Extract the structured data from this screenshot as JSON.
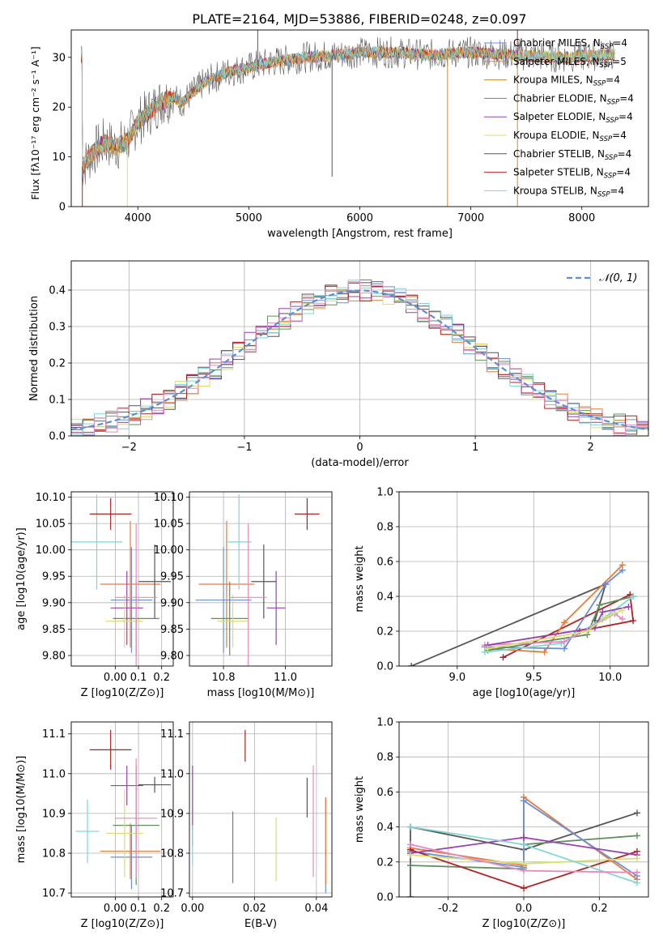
{
  "title": "PLATE=2164, MJD=53886, FIBERID=0248, z=0.097",
  "colors": {
    "chabrier_miles": "#6a8fd8",
    "salpeter_miles": "#e87b3a",
    "kroupa_miles": "#d08a2e",
    "chabrier_elodie": "#5f8f5f",
    "salpeter_elodie": "#9b3fb5",
    "kroupa_elodie": "#d8e06a",
    "chabrier_stelib": "#555555",
    "salpeter_stelib": "#b22020",
    "kroupa_stelib": "#7fd6d6",
    "pink": "#e58ac0",
    "normal_curve": "#5a8fd6"
  },
  "legend_top": [
    {
      "label": "Chabrier MILES, N",
      "sub": "SSP",
      "tail": "=4",
      "color": "#6a8fd8"
    },
    {
      "label": "Salpeter MILES, N",
      "sub": "SSP",
      "tail": "=5",
      "color": "#e87b3a"
    },
    {
      "label": "Kroupa MILES, N",
      "sub": "SSP",
      "tail": "=4",
      "color": "#d08a2e"
    },
    {
      "label": "Chabrier ELODIE, N",
      "sub": "SSP",
      "tail": "=4",
      "color": "#5f8f5f"
    },
    {
      "label": "Salpeter ELODIE, N",
      "sub": "SSP",
      "tail": "=4",
      "color": "#9b3fb5"
    },
    {
      "label": "Kroupa ELODIE, N",
      "sub": "SSP",
      "tail": "=4",
      "color": "#d8e06a"
    },
    {
      "label": "Chabrier STELIB, N",
      "sub": "SSP",
      "tail": "=4",
      "color": "#555555"
    },
    {
      "label": "Salpeter STELIB, N",
      "sub": "SSP",
      "tail": "=4",
      "color": "#b22020"
    },
    {
      "label": "Kroupa STELIB, N",
      "sub": "SSP",
      "tail": "=4",
      "color": "#7fd6d6"
    }
  ],
  "chart_data": [
    {
      "type": "line",
      "xlabel": "wavelength [Angstrom, rest frame]",
      "ylabel": "Flux [fλ10⁻¹⁷ erg cm⁻² s⁻¹ A⁻¹]",
      "xlim": [
        3400,
        8600
      ],
      "ylim": [
        0,
        35.5
      ],
      "xticks": [
        4000,
        5000,
        6000,
        7000,
        8000
      ],
      "yticks": [
        0,
        10,
        20,
        30
      ],
      "spectrum_envelope": {
        "x": [
          3500,
          3600,
          3700,
          3800,
          3900,
          4000,
          4100,
          4200,
          4300,
          4400,
          4500,
          4600,
          4800,
          5000,
          5200,
          5500,
          5800,
          6000,
          6300,
          6600,
          7000,
          7400,
          7800,
          8200
        ],
        "y": [
          8,
          11,
          13,
          12,
          13,
          17,
          19,
          21,
          22,
          21,
          23,
          25,
          27,
          28,
          29,
          30,
          30.5,
          31,
          31,
          30.5,
          31,
          30.5,
          30,
          30.5
        ]
      }
    },
    {
      "type": "histogram",
      "xlabel": "(data-model)/error",
      "ylabel": "Normed distribution",
      "xlim": [
        -2.5,
        2.5
      ],
      "ylim": [
        0,
        0.48
      ],
      "xticks": [
        -2,
        -1,
        0,
        1,
        2
      ],
      "yticks": [
        0.0,
        0.1,
        0.2,
        0.3,
        0.4
      ],
      "legend": "𝒩(0, 1)",
      "bin_width": 0.1
    },
    {
      "type": "scatter",
      "xlabel": "Z [log10(Z/Z⊙)]",
      "ylabel": "age  [log10(age/yr)]",
      "xlim": [
        -0.19,
        0.25
      ],
      "ylim": [
        9.78,
        10.11
      ],
      "xticks": [
        0.0,
        0.1,
        0.2
      ],
      "yticks": [
        9.8,
        9.85,
        9.9,
        9.95,
        10.0,
        10.05,
        10.1
      ],
      "points": [
        {
          "x": 0.07,
          "y": 9.905,
          "xerr": 0.09,
          "yerr": 0.1,
          "color": "#6a8fd8"
        },
        {
          "x": 0.065,
          "y": 9.935,
          "xerr": 0.13,
          "yerr": 0.12,
          "color": "#e87b3a"
        },
        {
          "x": -0.08,
          "y": 10.015,
          "xerr": 0.11,
          "yerr": 0.09,
          "color": "#7fd6d6"
        },
        {
          "x": 0.09,
          "y": 9.87,
          "xerr": 0.1,
          "yerr": 0.07,
          "color": "#5f8f5f"
        },
        {
          "x": 0.05,
          "y": 9.89,
          "xerr": 0.07,
          "yerr": 0.07,
          "color": "#9b3fb5"
        },
        {
          "x": 0.04,
          "y": 9.865,
          "xerr": 0.08,
          "yerr": 0.05,
          "color": "#d8e06a"
        },
        {
          "x": 0.17,
          "y": 9.94,
          "xerr": 0.07,
          "yerr": 0.07,
          "color": "#555555"
        },
        {
          "x": -0.02,
          "y": 10.068,
          "xerr": 0.09,
          "yerr": 0.03,
          "color": "#b22020"
        },
        {
          "x": 0.09,
          "y": 9.91,
          "xerr": 0.09,
          "yerr": 0.14,
          "color": "#e58ac0"
        }
      ]
    },
    {
      "type": "scatter",
      "xlabel": "mass [log10(M/M⊙)]",
      "xlim": [
        10.69,
        11.15
      ],
      "ylim": [
        9.78,
        10.11
      ],
      "xticks": [
        10.8,
        11.0
      ],
      "yticks": [
        9.8,
        9.85,
        9.9,
        9.95,
        10.0,
        10.05,
        10.1
      ],
      "points": [
        {
          "x": 10.8,
          "y": 9.905,
          "xerr": 0.09,
          "yerr": 0.1,
          "color": "#6a8fd8"
        },
        {
          "x": 10.81,
          "y": 9.935,
          "xerr": 0.09,
          "yerr": 0.12,
          "color": "#e87b3a"
        },
        {
          "x": 10.85,
          "y": 10.015,
          "xerr": 0.04,
          "yerr": 0.09,
          "color": "#7fd6d6"
        },
        {
          "x": 10.82,
          "y": 9.87,
          "xerr": 0.06,
          "yerr": 0.07,
          "color": "#5f8f5f"
        },
        {
          "x": 10.97,
          "y": 9.89,
          "xerr": 0.03,
          "yerr": 0.07,
          "color": "#9b3fb5"
        },
        {
          "x": 10.83,
          "y": 9.865,
          "xerr": 0.05,
          "yerr": 0.05,
          "color": "#d8e06a"
        },
        {
          "x": 10.93,
          "y": 9.94,
          "xerr": 0.04,
          "yerr": 0.07,
          "color": "#555555"
        },
        {
          "x": 11.07,
          "y": 10.068,
          "xerr": 0.04,
          "yerr": 0.03,
          "color": "#b22020"
        },
        {
          "x": 10.88,
          "y": 9.91,
          "xerr": 0.06,
          "yerr": 0.14,
          "color": "#e58ac0"
        }
      ]
    },
    {
      "type": "line",
      "xlabel": "age  [log10(age/yr)]",
      "ylabel": "mass weight",
      "xlim": [
        8.62,
        10.25
      ],
      "ylim": [
        0,
        1.0
      ],
      "xticks": [
        9.0,
        9.5,
        10.0
      ],
      "yticks": [
        0.0,
        0.2,
        0.4,
        0.6,
        0.8,
        1.0
      ],
      "series": [
        {
          "color": "#555555",
          "points": [
            [
              8.7,
              0.0
            ],
            [
              9.97,
              0.47
            ],
            [
              9.9,
              0.26
            ],
            [
              9.97,
              0.47
            ]
          ]
        },
        {
          "color": "#b22020",
          "points": [
            [
              9.3,
              0.05
            ],
            [
              10.13,
              0.41
            ],
            [
              10.15,
              0.26
            ],
            [
              9.8,
              0.2
            ]
          ]
        },
        {
          "color": "#e87b3a",
          "points": [
            [
              9.2,
              0.1
            ],
            [
              9.57,
              0.08
            ],
            [
              9.7,
              0.25
            ],
            [
              10.08,
              0.58
            ]
          ]
        },
        {
          "color": "#6a8fd8",
          "points": [
            [
              9.18,
              0.11
            ],
            [
              9.7,
              0.1
            ],
            [
              9.97,
              0.47
            ],
            [
              10.08,
              0.55
            ]
          ]
        },
        {
          "color": "#5f8f5f",
          "points": [
            [
              9.2,
              0.09
            ],
            [
              9.85,
              0.18
            ],
            [
              9.93,
              0.35
            ],
            [
              10.15,
              0.4
            ]
          ]
        },
        {
          "color": "#7fd6d6",
          "points": [
            [
              9.18,
              0.08
            ],
            [
              9.68,
              0.13
            ],
            [
              9.95,
              0.27
            ],
            [
              10.15,
              0.4
            ]
          ]
        },
        {
          "color": "#e58ac0",
          "points": [
            [
              9.18,
              0.12
            ],
            [
              9.7,
              0.14
            ],
            [
              10.03,
              0.3
            ],
            [
              10.08,
              0.27
            ]
          ]
        },
        {
          "color": "#9b3fb5",
          "points": [
            [
              9.2,
              0.12
            ],
            [
              9.9,
              0.22
            ],
            [
              9.95,
              0.31
            ],
            [
              10.12,
              0.34
            ]
          ]
        },
        {
          "color": "#d8e06a",
          "points": [
            [
              9.2,
              0.1
            ],
            [
              9.85,
              0.2
            ],
            [
              9.97,
              0.28
            ],
            [
              10.08,
              0.32
            ]
          ]
        }
      ]
    },
    {
      "type": "scatter",
      "xlabel": "Z [log10(Z/Z⊙)]",
      "ylabel": "mass [log10(M/M⊙)]",
      "xlim": [
        -0.19,
        0.25
      ],
      "ylim": [
        10.69,
        11.13
      ],
      "xticks": [
        0.0,
        0.1,
        0.2
      ],
      "yticks": [
        10.7,
        10.8,
        10.9,
        11.0,
        11.1
      ],
      "points": [
        {
          "x": 0.07,
          "y": 10.79,
          "xerr": 0.09,
          "yerr": 0.08,
          "color": "#6a8fd8"
        },
        {
          "x": 0.065,
          "y": 10.805,
          "xerr": 0.13,
          "yerr": 0.07,
          "color": "#e87b3a"
        },
        {
          "x": -0.12,
          "y": 10.855,
          "xerr": 0.05,
          "yerr": 0.08,
          "color": "#7fd6d6"
        },
        {
          "x": 0.09,
          "y": 10.87,
          "xerr": 0.1,
          "yerr": 0.15,
          "color": "#5f8f5f"
        },
        {
          "x": 0.05,
          "y": 10.97,
          "xerr": 0.07,
          "yerr": 0.05,
          "color": "#9b3fb5"
        },
        {
          "x": 0.04,
          "y": 10.85,
          "xerr": 0.08,
          "yerr": 0.11,
          "color": "#d8e06a"
        },
        {
          "x": 0.17,
          "y": 10.972,
          "xerr": 0.07,
          "yerr": 0.02,
          "color": "#555555"
        },
        {
          "x": -0.02,
          "y": 11.06,
          "xerr": 0.09,
          "yerr": 0.05,
          "color": "#b22020"
        },
        {
          "x": 0.09,
          "y": 10.888,
          "xerr": 0.09,
          "yerr": 0.15,
          "color": "#e58ac0"
        }
      ]
    },
    {
      "type": "scatter",
      "xlabel": "E(B-V)",
      "xlim": [
        -0.001,
        0.045
      ],
      "ylim": [
        10.69,
        11.13
      ],
      "xticks": [
        0.0,
        0.02,
        0.04
      ],
      "yticks": [
        10.7,
        10.8,
        10.9,
        11.0,
        11.1
      ],
      "points": [
        {
          "x": 0.0,
          "y": 10.92,
          "yerr": 0.1,
          "color": "#9b3fb5"
        },
        {
          "x": 0.0,
          "y": 10.82,
          "yerr": 0.05,
          "color": "#7fd6d6"
        },
        {
          "x": 0.013,
          "y": 10.815,
          "yerr": 0.09,
          "color": "#5f8f5f"
        },
        {
          "x": 0.017,
          "y": 11.07,
          "yerr": 0.04,
          "color": "#b22020"
        },
        {
          "x": 0.027,
          "y": 10.81,
          "yerr": 0.08,
          "color": "#d8e06a"
        },
        {
          "x": 0.037,
          "y": 10.94,
          "yerr": 0.05,
          "color": "#555555"
        },
        {
          "x": 0.039,
          "y": 10.88,
          "yerr": 0.14,
          "color": "#e58ac0"
        },
        {
          "x": 0.043,
          "y": 10.82,
          "yerr": 0.12,
          "color": "#6a8fd8"
        },
        {
          "x": 0.043,
          "y": 10.83,
          "yerr": 0.11,
          "color": "#e87b3a"
        }
      ]
    },
    {
      "type": "line",
      "xlabel": "Z [log10(Z/Z⊙)]",
      "ylabel": "mass weight",
      "xlim": [
        -0.33,
        0.33
      ],
      "ylim": [
        0,
        1.0
      ],
      "xticks": [
        -0.2,
        0.0,
        0.2
      ],
      "yticks": [
        0.0,
        0.2,
        0.4,
        0.6,
        0.8,
        1.0
      ],
      "series": [
        {
          "color": "#555555",
          "points": [
            [
              -0.3,
              0.0
            ],
            [
              -0.3,
              0.4
            ],
            [
              0.0,
              0.27
            ],
            [
              0.3,
              0.48
            ]
          ]
        },
        {
          "color": "#5f8f5f",
          "points": [
            [
              -0.3,
              0.18
            ],
            [
              0.0,
              0.16
            ],
            [
              0.0,
              0.3
            ],
            [
              0.3,
              0.35
            ]
          ]
        },
        {
          "color": "#e87b3a",
          "points": [
            [
              -0.3,
              0.28
            ],
            [
              0.0,
              0.18
            ],
            [
              0.0,
              0.57
            ],
            [
              0.3,
              0.1
            ]
          ]
        },
        {
          "color": "#6a8fd8",
          "points": [
            [
              -0.3,
              0.26
            ],
            [
              0.0,
              0.17
            ],
            [
              0.0,
              0.55
            ],
            [
              0.3,
              0.12
            ]
          ]
        },
        {
          "color": "#b22020",
          "points": [
            [
              -0.3,
              0.27
            ],
            [
              0.0,
              0.05
            ],
            [
              0.3,
              0.26
            ]
          ]
        },
        {
          "color": "#9b3fb5",
          "points": [
            [
              -0.3,
              0.25
            ],
            [
              0.0,
              0.34
            ],
            [
              0.3,
              0.24
            ]
          ]
        },
        {
          "color": "#d8e06a",
          "points": [
            [
              -0.3,
              0.24
            ],
            [
              0.0,
              0.19
            ],
            [
              0.3,
              0.22
            ]
          ]
        },
        {
          "color": "#7fd6d6",
          "points": [
            [
              -0.3,
              0.4
            ],
            [
              0.0,
              0.3
            ],
            [
              0.3,
              0.08
            ]
          ]
        },
        {
          "color": "#e58ac0",
          "points": [
            [
              -0.3,
              0.3
            ],
            [
              0.0,
              0.15
            ],
            [
              0.3,
              0.14
            ]
          ]
        }
      ]
    }
  ]
}
